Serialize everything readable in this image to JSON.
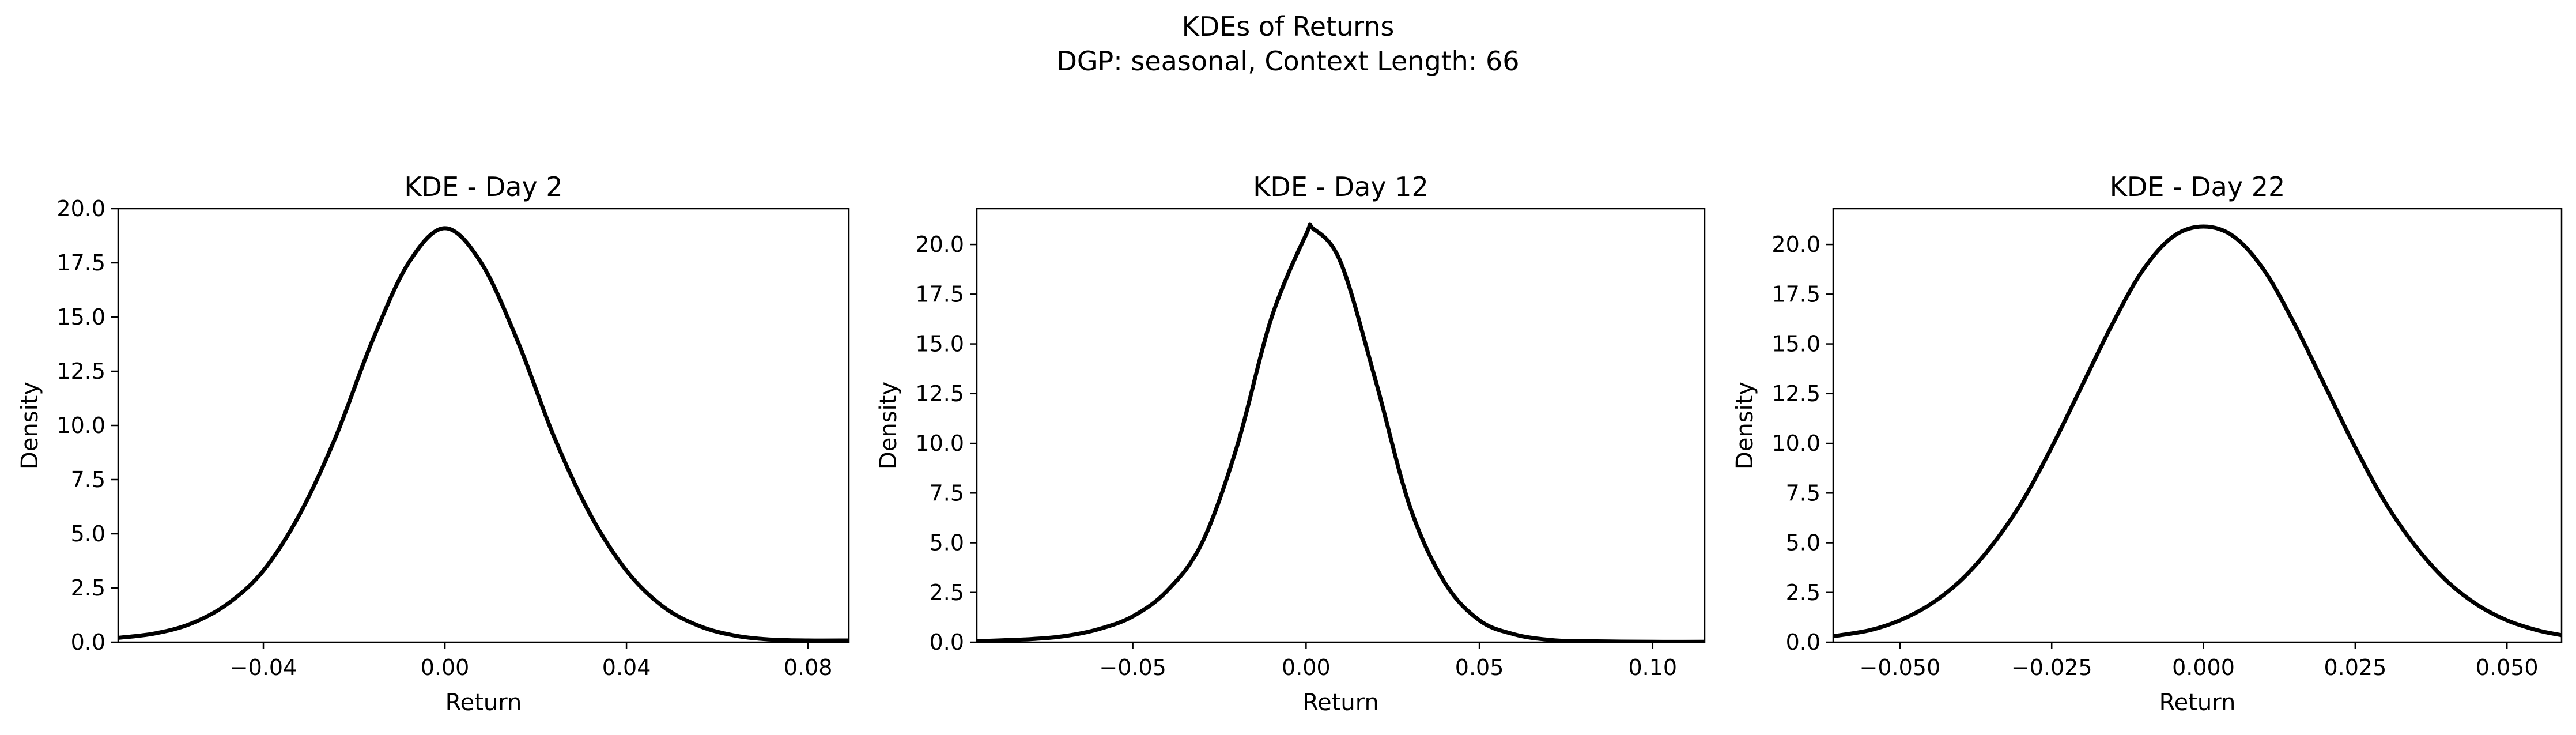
{
  "figure": {
    "title_line1": "KDEs of Returns",
    "title_line2": "DGP: seasonal, Context Length: 66"
  },
  "chart_data": [
    {
      "type": "line",
      "title": "KDE - Day 2",
      "xlabel": "Return",
      "ylabel": "Density",
      "xlim": [
        -0.072,
        0.089
      ],
      "ylim": [
        0,
        20
      ],
      "xticks": [
        -0.04,
        0.0,
        0.04,
        0.08
      ],
      "xticklabels": [
        "−0.04",
        "0.00",
        "0.04",
        "0.08"
      ],
      "yticks": [
        0,
        2.5,
        5,
        7.5,
        10,
        12.5,
        15,
        17.5,
        20
      ],
      "yticklabels": [
        "0.0",
        "2.5",
        "5.0",
        "7.5",
        "10.0",
        "12.5",
        "15.0",
        "17.5",
        "20.0"
      ],
      "grid": false,
      "line_color": "#000000",
      "series": [
        {
          "x": [
            -0.072,
            -0.064,
            -0.056,
            -0.048,
            -0.04,
            -0.032,
            -0.024,
            -0.016,
            -0.008,
            0.0,
            0.008,
            0.016,
            0.024,
            0.032,
            0.04,
            0.048,
            0.056,
            0.064,
            0.072,
            0.08,
            0.089
          ],
          "y": [
            0.2,
            0.4,
            0.85,
            1.75,
            3.3,
            5.9,
            9.5,
            13.9,
            17.5,
            19.1,
            17.5,
            13.9,
            9.5,
            5.9,
            3.3,
            1.65,
            0.75,
            0.3,
            0.12,
            0.08,
            0.08
          ]
        }
      ]
    },
    {
      "type": "line",
      "title": "KDE - Day 12",
      "xlabel": "Return",
      "ylabel": "Density",
      "xlim": [
        -0.095,
        0.115
      ],
      "ylim": [
        0,
        21.8
      ],
      "xticks": [
        -0.05,
        0.0,
        0.05,
        0.1
      ],
      "xticklabels": [
        "−0.05",
        "0.00",
        "0.05",
        "0.10"
      ],
      "yticks": [
        0,
        2.5,
        5,
        7.5,
        10,
        12.5,
        15,
        17.5,
        20
      ],
      "yticklabels": [
        "0.0",
        "2.5",
        "5.0",
        "7.5",
        "10.0",
        "12.5",
        "15.0",
        "17.5",
        "20.0"
      ],
      "grid": false,
      "line_color": "#000000",
      "series": [
        {
          "x": [
            -0.095,
            -0.08,
            -0.07,
            -0.06,
            -0.05,
            -0.04,
            -0.03,
            -0.02,
            -0.01,
            0.0,
            0.002,
            0.01,
            0.02,
            0.03,
            0.04,
            0.05,
            0.06,
            0.07,
            0.08,
            0.1,
            0.115
          ],
          "y": [
            0.05,
            0.15,
            0.3,
            0.65,
            1.3,
            2.6,
            5.0,
            9.8,
            16.3,
            20.5,
            20.8,
            19.1,
            13.2,
            6.8,
            3.0,
            1.1,
            0.4,
            0.12,
            0.05,
            0.02,
            0.02
          ]
        }
      ]
    },
    {
      "type": "line",
      "title": "KDE - Day 22",
      "xlabel": "Return",
      "ylabel": "Density",
      "xlim": [
        -0.061,
        0.059
      ],
      "ylim": [
        0,
        21.8
      ],
      "xticks": [
        -0.05,
        -0.025,
        0.0,
        0.025,
        0.05
      ],
      "xticklabels": [
        "−0.050",
        "−0.025",
        "0.000",
        "0.025",
        "0.050"
      ],
      "yticks": [
        0,
        2.5,
        5,
        7.5,
        10,
        12.5,
        15,
        17.5,
        20
      ],
      "yticklabels": [
        "0.0",
        "2.5",
        "5.0",
        "7.5",
        "10.0",
        "12.5",
        "15.0",
        "17.5",
        "20.0"
      ],
      "grid": false,
      "line_color": "#000000",
      "series": [
        {
          "x": [
            -0.061,
            -0.055,
            -0.05,
            -0.045,
            -0.04,
            -0.035,
            -0.03,
            -0.025,
            -0.02,
            -0.015,
            -0.01,
            -0.005,
            0.0,
            0.005,
            0.01,
            0.015,
            0.02,
            0.025,
            0.03,
            0.035,
            0.04,
            0.045,
            0.05,
            0.055,
            0.059
          ],
          "y": [
            0.3,
            0.6,
            1.1,
            1.9,
            3.1,
            4.8,
            7.0,
            9.8,
            12.9,
            16.0,
            18.7,
            20.4,
            20.9,
            20.4,
            18.7,
            16.0,
            12.9,
            9.8,
            7.0,
            4.8,
            3.1,
            1.9,
            1.1,
            0.6,
            0.35
          ]
        }
      ]
    }
  ]
}
